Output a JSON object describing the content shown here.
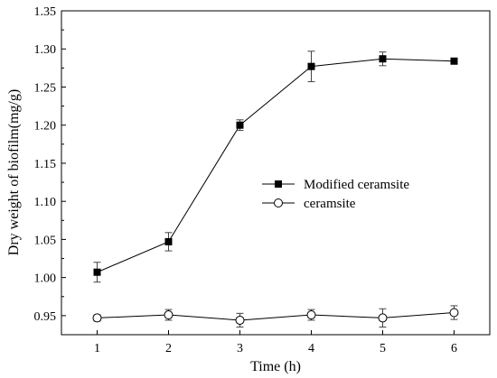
{
  "chart_data": {
    "type": "line",
    "title": "",
    "xlabel": "Time (h)",
    "ylabel": "Dry weight of biofilm(mg/g)",
    "x": [
      1,
      2,
      3,
      4,
      5,
      6
    ],
    "xticks": [
      "1",
      "2",
      "3",
      "4",
      "5",
      "6"
    ],
    "xlim": [
      0.5,
      6.5
    ],
    "ylim": [
      0.925,
      1.35
    ],
    "yticks": [
      "0.95",
      "1.00",
      "1.05",
      "1.10",
      "1.15",
      "1.20",
      "1.25",
      "1.30",
      "1.35"
    ],
    "ytick_values": [
      0.95,
      1.0,
      1.05,
      1.1,
      1.15,
      1.2,
      1.25,
      1.3,
      1.35
    ],
    "grid": false,
    "legend_position": "center-right",
    "series": [
      {
        "name": "Modified ceramsite",
        "marker": "filled-square",
        "color": "#000000",
        "values": [
          1.007,
          1.047,
          1.2,
          1.277,
          1.287,
          1.284
        ],
        "errors": [
          0.013,
          0.012,
          0.007,
          0.02,
          0.009,
          0.003
        ]
      },
      {
        "name": "ceramsite",
        "marker": "open-circle",
        "color": "#000000",
        "values": [
          0.947,
          0.951,
          0.944,
          0.951,
          0.947,
          0.954
        ],
        "errors": [
          0.004,
          0.007,
          0.009,
          0.007,
          0.012,
          0.009
        ]
      }
    ]
  }
}
